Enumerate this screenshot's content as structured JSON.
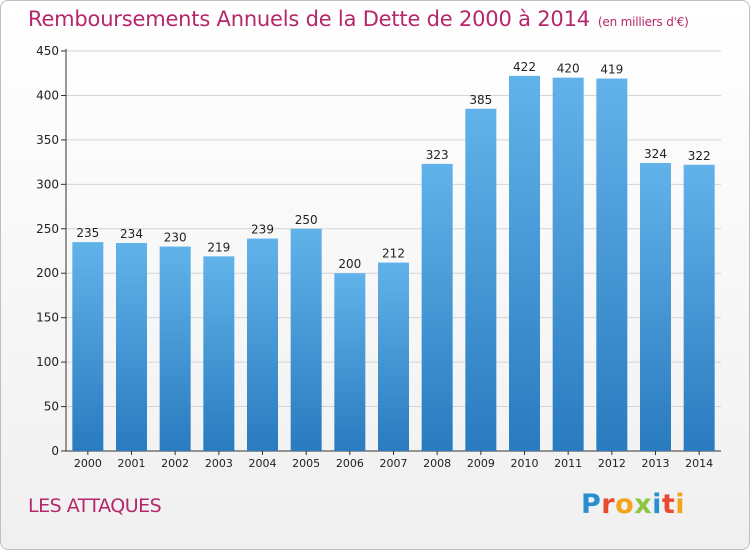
{
  "title": "Remboursements Annuels de la Dette de 2000 à 2014",
  "unit": "(en milliers d'€)",
  "commune": "LES ATTAQUES",
  "logo": {
    "text": "Proxiti",
    "letters": [
      {
        "char": "P",
        "color": "#2a8fd0"
      },
      {
        "char": "r",
        "color": "#e8492f"
      },
      {
        "char": "o",
        "color": "#f2a51a"
      },
      {
        "char": "x",
        "color": "#8cc63f"
      },
      {
        "char": "i",
        "color": "#2a8fd0"
      },
      {
        "char": "t",
        "color": "#e8492f"
      },
      {
        "char": "i",
        "color": "#f2a51a"
      }
    ]
  },
  "colors": {
    "bar_top": "#62b2ea",
    "bar_bottom": "#2a7bbf",
    "title": "#b5276a",
    "grid": "#d4d4d4"
  },
  "chart_data": {
    "type": "bar",
    "title": "Remboursements Annuels de la Dette de 2000 à 2014",
    "categories": [
      "2000",
      "2001",
      "2002",
      "2003",
      "2004",
      "2005",
      "2006",
      "2007",
      "2008",
      "2009",
      "2010",
      "2011",
      "2012",
      "2013",
      "2014"
    ],
    "values": [
      235,
      234,
      230,
      219,
      239,
      250,
      200,
      212,
      323,
      385,
      422,
      420,
      419,
      324,
      322
    ],
    "ylim": [
      0,
      450
    ],
    "yticks": [
      0,
      50,
      100,
      150,
      200,
      250,
      300,
      350,
      400,
      450
    ],
    "grid": true,
    "data_labels": true
  }
}
